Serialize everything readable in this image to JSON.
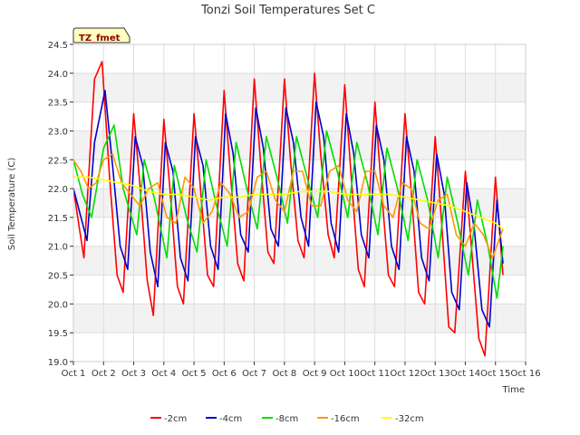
{
  "chart_data": {
    "type": "line",
    "title": "Tonzi Soil Temperatures Set C",
    "xlabel": "Time",
    "ylabel": "Soil Temperature (C)",
    "tag": "TZ_fmet",
    "xlim": [
      1,
      16
    ],
    "ylim": [
      19.0,
      24.5
    ],
    "x_ticks": [
      {
        "value": 1,
        "label": "Oct 1"
      },
      {
        "value": 2,
        "label": "Oct 2"
      },
      {
        "value": 3,
        "label": "Oct 3"
      },
      {
        "value": 4,
        "label": "Oct 4"
      },
      {
        "value": 5,
        "label": "Oct 5"
      },
      {
        "value": 6,
        "label": "Oct 6"
      },
      {
        "value": 7,
        "label": "Oct 7"
      },
      {
        "value": 8,
        "label": "Oct 8"
      },
      {
        "value": 9,
        "label": "Oct 9"
      },
      {
        "value": 10,
        "label": "Oct 10"
      },
      {
        "value": 11,
        "label": "Oct 11"
      },
      {
        "value": 12,
        "label": "Oct 12"
      },
      {
        "value": 13,
        "label": "Oct 13"
      },
      {
        "value": 14,
        "label": "Oct 14"
      },
      {
        "value": 15,
        "label": "Oct 15"
      },
      {
        "value": 16,
        "label": "Oct 16"
      }
    ],
    "y_ticks": [
      {
        "value": 19.0,
        "label": "19.0"
      },
      {
        "value": 19.5,
        "label": "19.5"
      },
      {
        "value": 20.0,
        "label": "20.0"
      },
      {
        "value": 20.5,
        "label": "20.5"
      },
      {
        "value": 21.0,
        "label": "21.0"
      },
      {
        "value": 21.5,
        "label": "21.5"
      },
      {
        "value": 22.0,
        "label": "22.0"
      },
      {
        "value": 22.5,
        "label": "22.5"
      },
      {
        "value": 23.0,
        "label": "23.0"
      },
      {
        "value": 23.5,
        "label": "23.5"
      },
      {
        "value": 24.0,
        "label": "24.0"
      },
      {
        "value": 24.5,
        "label": "24.5"
      }
    ],
    "grid": true,
    "legend_position": "bottom",
    "series": [
      {
        "name": "-2cm",
        "color": "#ff0000",
        "x": [
          1.0,
          1.2,
          1.35,
          1.55,
          1.7,
          1.95,
          2.2,
          2.45,
          2.65,
          3.0,
          3.2,
          3.45,
          3.65,
          4.0,
          4.2,
          4.45,
          4.65,
          5.0,
          5.2,
          5.45,
          5.65,
          6.0,
          6.2,
          6.45,
          6.65,
          7.0,
          7.2,
          7.45,
          7.65,
          8.0,
          8.2,
          8.45,
          8.65,
          9.0,
          9.2,
          9.45,
          9.65,
          10.0,
          10.2,
          10.45,
          10.65,
          11.0,
          11.2,
          11.45,
          11.65,
          12.0,
          12.2,
          12.45,
          12.65,
          13.0,
          13.2,
          13.45,
          13.65,
          14.0,
          14.2,
          14.45,
          14.65,
          15.0,
          15.25
        ],
        "y": [
          22.0,
          21.3,
          20.8,
          22.6,
          23.9,
          24.2,
          22.2,
          20.5,
          20.2,
          23.3,
          22.1,
          20.4,
          19.8,
          23.2,
          22.0,
          20.3,
          20.0,
          23.3,
          22.1,
          20.5,
          20.3,
          23.7,
          22.3,
          20.7,
          20.4,
          23.9,
          22.5,
          20.9,
          20.7,
          23.9,
          22.5,
          21.1,
          20.8,
          24.0,
          22.6,
          21.2,
          20.8,
          23.8,
          22.3,
          20.6,
          20.3,
          23.5,
          22.1,
          20.5,
          20.3,
          23.3,
          22.0,
          20.2,
          20.0,
          22.9,
          21.5,
          19.6,
          19.5,
          22.3,
          21.0,
          19.4,
          19.1,
          22.2,
          20.5
        ]
      },
      {
        "name": "-4cm",
        "color": "#0000cc",
        "x": [
          1.0,
          1.2,
          1.45,
          1.7,
          2.05,
          2.3,
          2.55,
          2.8,
          3.05,
          3.3,
          3.55,
          3.8,
          4.05,
          4.3,
          4.55,
          4.8,
          5.05,
          5.3,
          5.55,
          5.8,
          6.05,
          6.3,
          6.55,
          6.8,
          7.05,
          7.3,
          7.55,
          7.8,
          8.05,
          8.3,
          8.55,
          8.8,
          9.05,
          9.3,
          9.55,
          9.8,
          10.05,
          10.3,
          10.55,
          10.8,
          11.05,
          11.3,
          11.55,
          11.8,
          12.05,
          12.3,
          12.55,
          12.8,
          13.05,
          13.3,
          13.55,
          13.8,
          14.05,
          14.3,
          14.55,
          14.8,
          15.05,
          15.25
        ],
        "y": [
          22.0,
          21.6,
          21.1,
          22.8,
          23.7,
          22.4,
          21.0,
          20.6,
          22.9,
          22.4,
          20.9,
          20.3,
          22.8,
          22.3,
          20.8,
          20.4,
          22.9,
          22.4,
          21.0,
          20.6,
          23.3,
          22.6,
          21.2,
          20.9,
          23.4,
          22.7,
          21.3,
          21.0,
          23.4,
          22.8,
          21.5,
          21.0,
          23.5,
          22.9,
          21.4,
          20.9,
          23.3,
          22.6,
          21.2,
          20.8,
          23.1,
          22.5,
          21.0,
          20.6,
          22.9,
          22.3,
          20.8,
          20.4,
          22.6,
          21.9,
          20.2,
          19.9,
          22.1,
          21.3,
          19.9,
          19.6,
          21.8,
          20.7
        ]
      },
      {
        "name": "-8cm",
        "color": "#00dd00",
        "x": [
          1.0,
          1.3,
          1.6,
          2.0,
          2.35,
          2.65,
          3.1,
          3.35,
          3.7,
          4.1,
          4.35,
          4.75,
          5.1,
          5.4,
          5.75,
          6.1,
          6.4,
          6.75,
          7.1,
          7.4,
          7.75,
          8.1,
          8.4,
          8.75,
          9.1,
          9.4,
          9.75,
          10.1,
          10.4,
          10.75,
          11.1,
          11.4,
          11.75,
          12.1,
          12.4,
          12.75,
          13.1,
          13.4,
          13.75,
          14.1,
          14.4,
          14.75,
          15.05,
          15.25
        ],
        "y": [
          22.5,
          21.9,
          21.5,
          22.7,
          23.1,
          22.0,
          21.2,
          22.5,
          21.8,
          20.8,
          22.4,
          21.5,
          20.9,
          22.5,
          21.7,
          21.0,
          22.8,
          22.0,
          21.3,
          22.9,
          22.2,
          21.4,
          22.9,
          22.2,
          21.5,
          23.0,
          22.3,
          21.5,
          22.8,
          22.1,
          21.2,
          22.7,
          22.0,
          21.1,
          22.5,
          21.8,
          20.8,
          22.2,
          21.4,
          20.5,
          21.8,
          21.0,
          20.1,
          21.0
        ]
      },
      {
        "name": "-16cm",
        "color": "#ff9900",
        "x": [
          1.0,
          1.25,
          1.5,
          1.75,
          2.0,
          2.3,
          2.6,
          2.9,
          3.2,
          3.5,
          3.8,
          4.1,
          4.4,
          4.7,
          5.0,
          5.3,
          5.6,
          5.9,
          6.2,
          6.5,
          6.8,
          7.1,
          7.4,
          7.7,
          8.0,
          8.3,
          8.6,
          8.9,
          9.2,
          9.5,
          9.8,
          10.1,
          10.4,
          10.7,
          11.0,
          11.3,
          11.6,
          11.9,
          12.2,
          12.5,
          12.8,
          13.1,
          13.4,
          13.7,
          14.0,
          14.3,
          14.6,
          14.9,
          15.25
        ],
        "y": [
          22.5,
          22.3,
          22.0,
          22.1,
          22.5,
          22.6,
          22.1,
          21.9,
          21.7,
          22.0,
          22.1,
          21.5,
          21.4,
          22.2,
          22.0,
          21.4,
          21.6,
          22.1,
          21.9,
          21.5,
          21.6,
          22.2,
          22.3,
          21.8,
          21.6,
          22.3,
          22.3,
          21.7,
          21.7,
          22.3,
          22.4,
          21.8,
          21.6,
          22.3,
          22.3,
          21.7,
          21.5,
          22.1,
          22.0,
          21.4,
          21.3,
          21.8,
          21.9,
          21.2,
          21.0,
          21.4,
          21.2,
          20.8,
          21.3
        ]
      },
      {
        "name": "-32cm",
        "color": "#ffff00",
        "x": [
          1.0,
          1.5,
          2.0,
          2.5,
          3.0,
          3.5,
          4.0,
          4.5,
          5.0,
          5.5,
          6.0,
          6.5,
          7.0,
          7.5,
          8.0,
          8.5,
          9.0,
          9.5,
          10.0,
          10.5,
          11.0,
          11.5,
          12.0,
          12.5,
          13.0,
          13.5,
          14.0,
          14.5,
          15.0,
          15.25
        ],
        "y": [
          22.2,
          22.2,
          22.15,
          22.1,
          22.05,
          21.95,
          21.9,
          21.9,
          21.85,
          21.8,
          21.85,
          21.85,
          21.9,
          21.9,
          21.9,
          21.95,
          21.95,
          21.95,
          21.9,
          21.9,
          21.9,
          21.9,
          21.85,
          21.8,
          21.75,
          21.7,
          21.6,
          21.5,
          21.4,
          21.3
        ]
      }
    ]
  }
}
